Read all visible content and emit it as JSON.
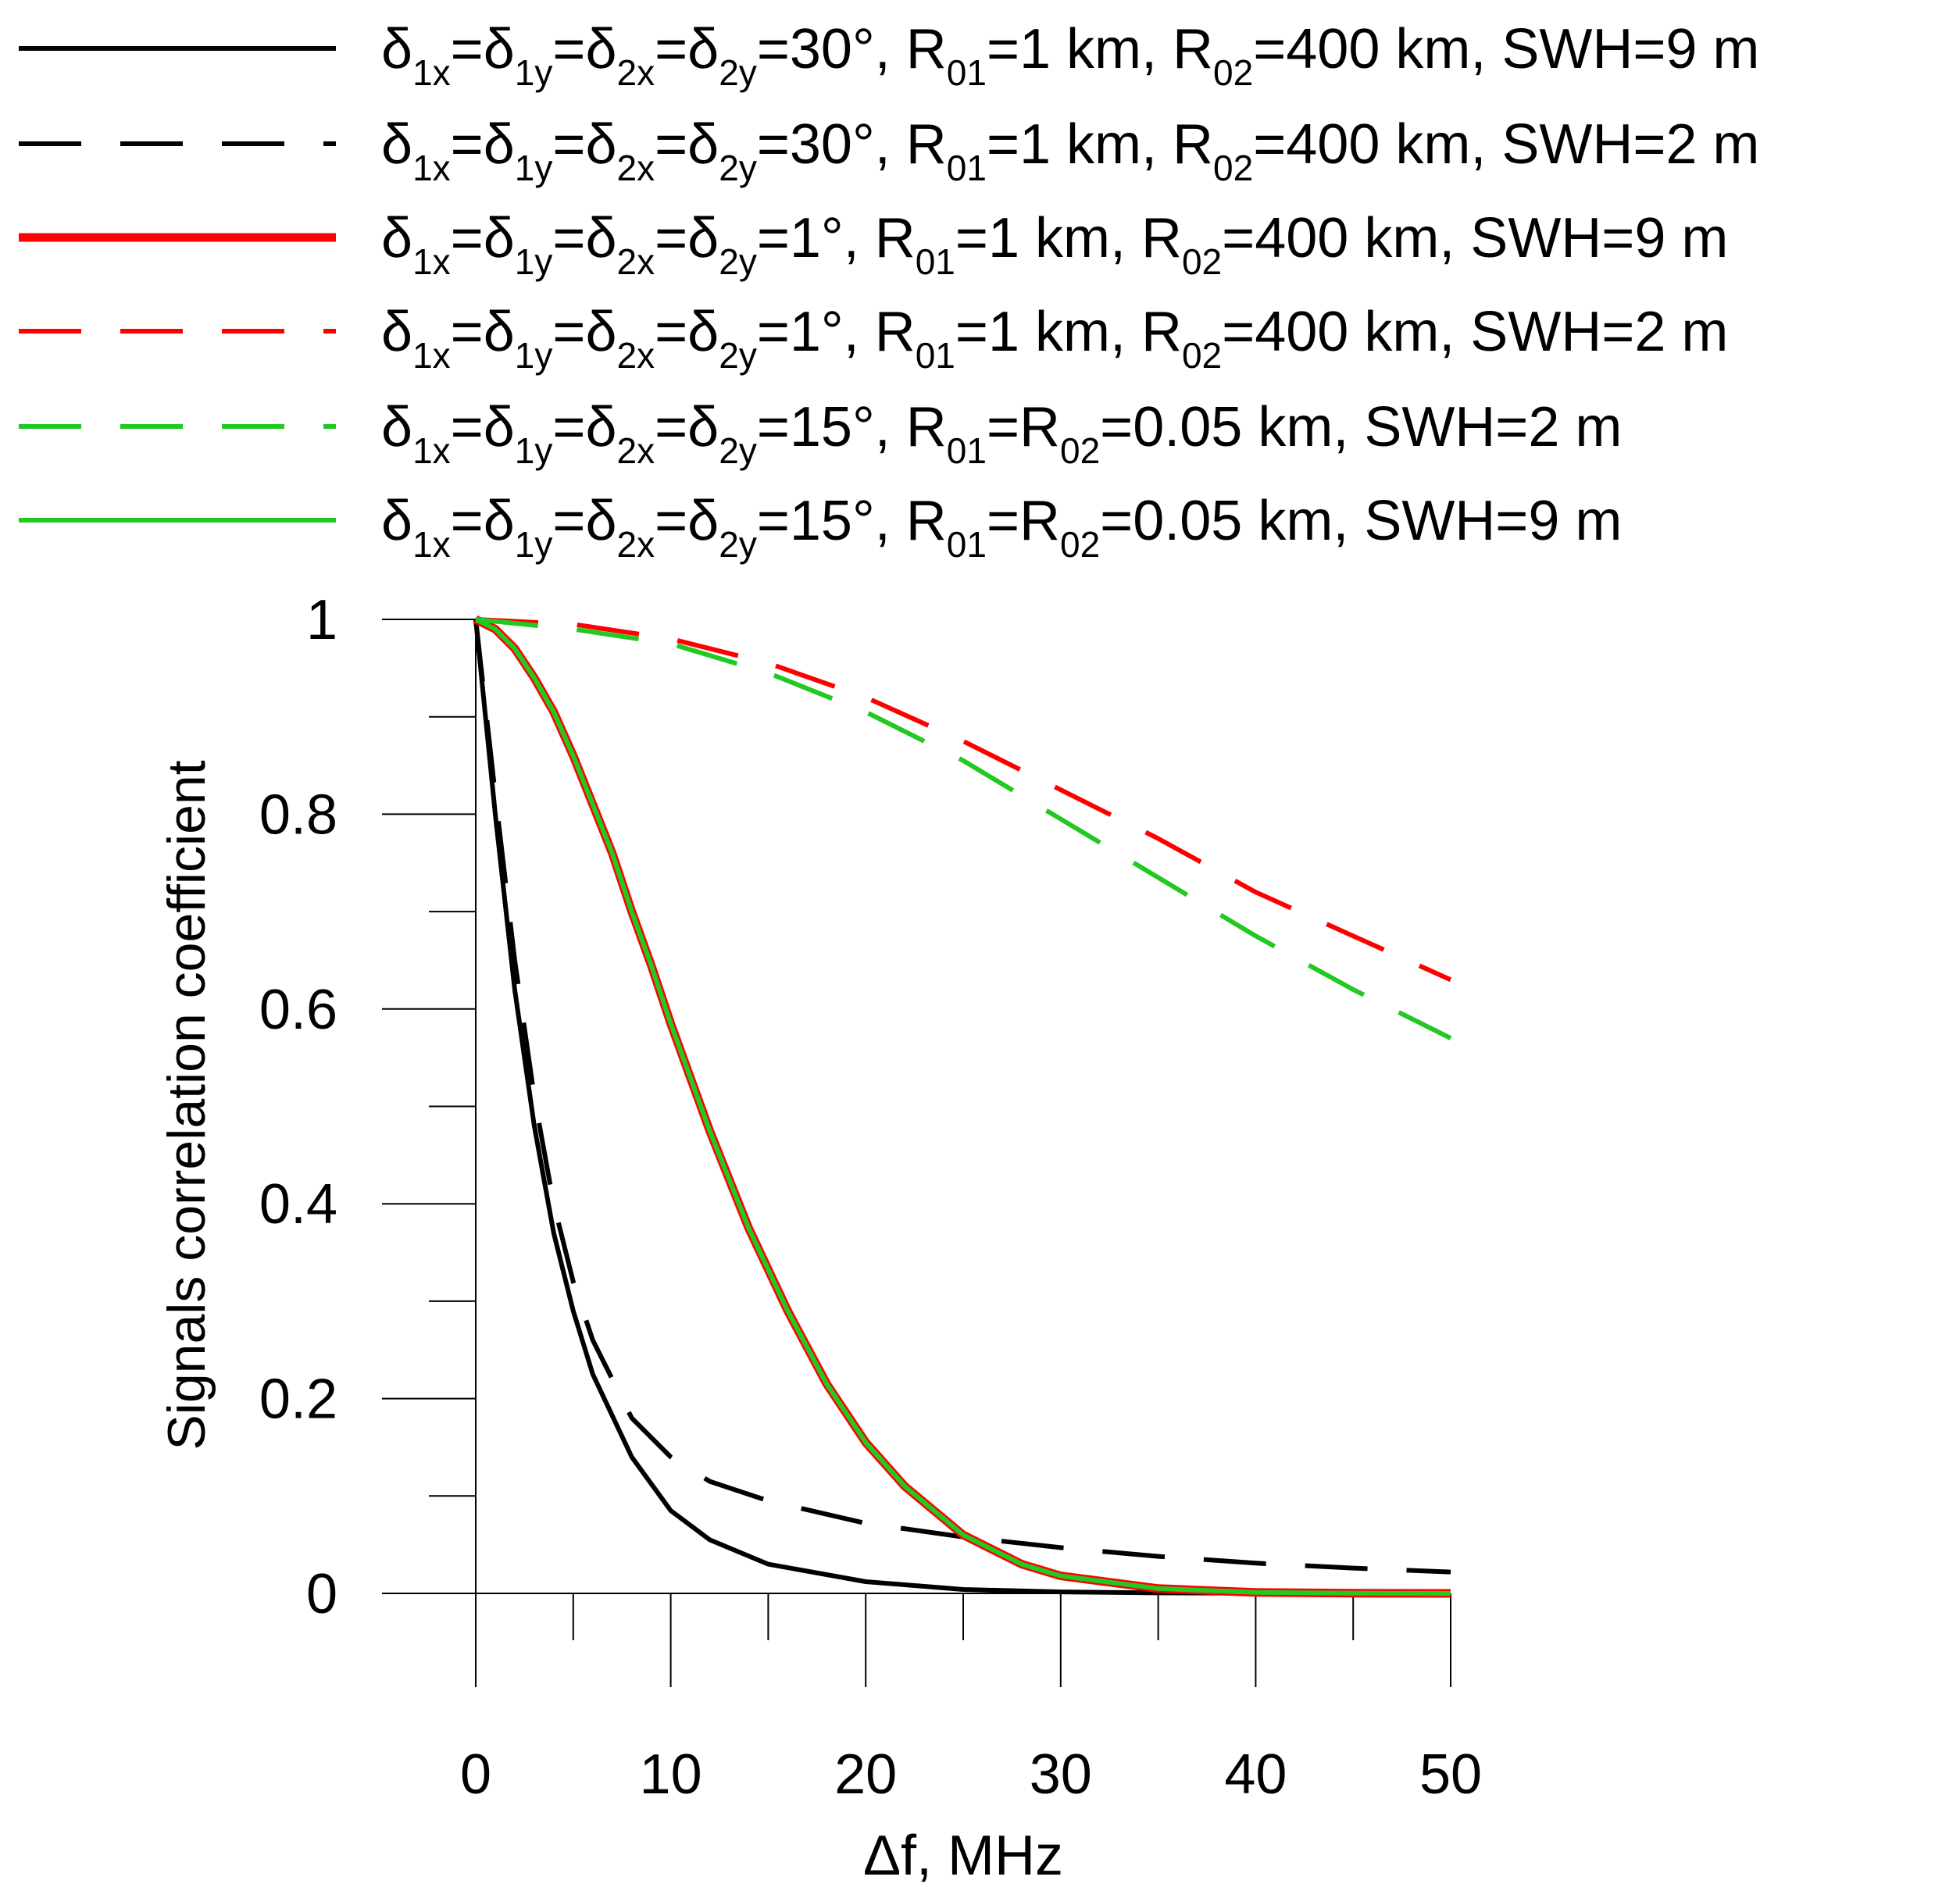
{
  "chart_data": {
    "type": "line",
    "title": "",
    "xlabel": "Δf, MHz",
    "ylabel": "Signals correlation coefficient",
    "xlim": [
      0,
      50
    ],
    "ylim": [
      0,
      1
    ],
    "x_ticks": [
      0,
      10,
      20,
      30,
      40,
      50
    ],
    "x_tick_labels": [
      "0",
      "10",
      "20",
      "30",
      "40",
      "50"
    ],
    "x_minor_step": 5,
    "y_ticks": [
      0,
      0.2,
      0.4,
      0.6,
      0.8,
      1
    ],
    "y_tick_labels": [
      "0",
      "0.2",
      "0.4",
      "0.6",
      "0.8",
      "1"
    ],
    "y_minor_step": 0.1,
    "grid": false,
    "legend_position": "top",
    "series": [
      {
        "name": "δ1x=δ1y=δ2x=δ2y=30°, R01=1 km, R02=400 km, SWH=9 m",
        "legend": {
          "parts": [
            {
              "t": "δ"
            },
            {
              "t": "1x",
              "sub": true
            },
            {
              "t": "=δ"
            },
            {
              "t": "1y",
              "sub": true
            },
            {
              "t": "=δ"
            },
            {
              "t": "2x",
              "sub": true
            },
            {
              "t": "=δ"
            },
            {
              "t": "2y",
              "sub": true
            },
            {
              "t": "=30°, R"
            },
            {
              "t": "01",
              "sub": true
            },
            {
              "t": "=1 km, R"
            },
            {
              "t": "02",
              "sub": true
            },
            {
              "t": "=400 km, SWH=9 m"
            }
          ]
        },
        "color": "#000000",
        "style": "solid",
        "width": 6,
        "x": [
          0,
          1,
          2,
          3,
          4,
          5,
          6,
          8,
          10,
          12,
          15,
          20,
          25,
          30,
          35,
          40,
          45,
          50
        ],
        "y": [
          1,
          0.8,
          0.62,
          0.48,
          0.37,
          0.29,
          0.225,
          0.14,
          0.085,
          0.055,
          0.03,
          0.012,
          0.004,
          0.0015,
          0.0005,
          0.0002,
          0.0001,
          0
        ]
      },
      {
        "name": "δ1x=δ1y=δ2x=δ2y=30°, R01=1 km, R02=400 km, SWH=2 m",
        "legend": {
          "parts": [
            {
              "t": "δ"
            },
            {
              "t": "1x",
              "sub": true
            },
            {
              "t": "=δ"
            },
            {
              "t": "1y",
              "sub": true
            },
            {
              "t": "=δ"
            },
            {
              "t": "2x",
              "sub": true
            },
            {
              "t": "=δ"
            },
            {
              "t": "2y",
              "sub": true
            },
            {
              "t": "=30°, R"
            },
            {
              "t": "01",
              "sub": true
            },
            {
              "t": "=1 km, R"
            },
            {
              "t": "02",
              "sub": true
            },
            {
              "t": "=400 km, SWH=2 m"
            }
          ]
        },
        "color": "#000000",
        "style": "dashed",
        "width": 6,
        "x": [
          0,
          1,
          2,
          3,
          4,
          5,
          6,
          8,
          10,
          12,
          15,
          20,
          25,
          30,
          35,
          40,
          45,
          50
        ],
        "y": [
          1,
          0.82,
          0.65,
          0.51,
          0.4,
          0.32,
          0.26,
          0.18,
          0.14,
          0.115,
          0.095,
          0.072,
          0.058,
          0.047,
          0.038,
          0.031,
          0.026,
          0.022
        ]
      },
      {
        "name": "δ1x=δ1y=δ2x=δ2y=1°, R01=1 km, R02=400 km, SWH=9 m",
        "legend": {
          "parts": [
            {
              "t": "δ"
            },
            {
              "t": "1x",
              "sub": true
            },
            {
              "t": "=δ"
            },
            {
              "t": "1y",
              "sub": true
            },
            {
              "t": "=δ"
            },
            {
              "t": "2x",
              "sub": true
            },
            {
              "t": "=δ"
            },
            {
              "t": "2y",
              "sub": true
            },
            {
              "t": "=1°, R"
            },
            {
              "t": "01",
              "sub": true
            },
            {
              "t": "=1 km, R"
            },
            {
              "t": "02",
              "sub": true
            },
            {
              "t": "=400 km, SWH=9 m"
            }
          ]
        },
        "color": "#ff0000",
        "style": "solid",
        "width": 11,
        "x": [
          0,
          1,
          2,
          3,
          4,
          5,
          6,
          7,
          8,
          9,
          10,
          12,
          14,
          16,
          18,
          20,
          22,
          25,
          28,
          30,
          35,
          40,
          45,
          50
        ],
        "y": [
          1,
          0.99,
          0.97,
          0.94,
          0.905,
          0.86,
          0.81,
          0.76,
          0.7,
          0.645,
          0.585,
          0.475,
          0.375,
          0.29,
          0.215,
          0.155,
          0.11,
          0.06,
          0.03,
          0.018,
          0.005,
          0.001,
          0.0002,
          0
        ]
      },
      {
        "name": "δ1x=δ1y=δ2x=δ2y=1°, R01=1 km, R02=400 km, SWH=2 m",
        "legend": {
          "parts": [
            {
              "t": "δ"
            },
            {
              "t": "1x",
              "sub": true
            },
            {
              "t": "=δ"
            },
            {
              "t": "1y",
              "sub": true
            },
            {
              "t": "=δ"
            },
            {
              "t": "2x",
              "sub": true
            },
            {
              "t": "=δ"
            },
            {
              "t": "2y",
              "sub": true
            },
            {
              "t": "=1°, R"
            },
            {
              "t": "01",
              "sub": true
            },
            {
              "t": "=1 km, R"
            },
            {
              "t": "02",
              "sub": true
            },
            {
              "t": "=400 km, SWH=2 m"
            }
          ]
        },
        "color": "#ff0000",
        "style": "dashed",
        "width": 6,
        "x": [
          0,
          5,
          10,
          15,
          20,
          25,
          30,
          35,
          40,
          45,
          50
        ],
        "y": [
          1,
          0.995,
          0.98,
          0.955,
          0.92,
          0.875,
          0.825,
          0.775,
          0.72,
          0.675,
          0.63
        ]
      },
      {
        "name": "δ1x=δ1y=δ2x=δ2y=15°, R01=R02=0.05 km, SWH=2 m",
        "legend": {
          "parts": [
            {
              "t": "δ"
            },
            {
              "t": "1x",
              "sub": true
            },
            {
              "t": "=δ"
            },
            {
              "t": "1y",
              "sub": true
            },
            {
              "t": "=δ"
            },
            {
              "t": "2x",
              "sub": true
            },
            {
              "t": "=δ"
            },
            {
              "t": "2y",
              "sub": true
            },
            {
              "t": "=15°, R"
            },
            {
              "t": "01",
              "sub": true
            },
            {
              "t": "=R"
            },
            {
              "t": "02",
              "sub": true
            },
            {
              "t": "=0.05 km, SWH=2 m"
            }
          ]
        },
        "color": "#22c922",
        "style": "dashed",
        "width": 6,
        "x": [
          0,
          5,
          10,
          15,
          20,
          25,
          30,
          35,
          40,
          45,
          50
        ],
        "y": [
          1,
          0.99,
          0.975,
          0.945,
          0.905,
          0.855,
          0.795,
          0.735,
          0.675,
          0.62,
          0.57
        ]
      },
      {
        "name": "δ1x=δ1y=δ2x=δ2y=15°, R01=R02=0.05 km, SWH=9 m",
        "legend": {
          "parts": [
            {
              "t": "δ"
            },
            {
              "t": "1x",
              "sub": true
            },
            {
              "t": "=δ"
            },
            {
              "t": "1y",
              "sub": true
            },
            {
              "t": "=δ"
            },
            {
              "t": "2x",
              "sub": true
            },
            {
              "t": "=δ"
            },
            {
              "t": "2y",
              "sub": true
            },
            {
              "t": "=15°, R"
            },
            {
              "t": "01",
              "sub": true
            },
            {
              "t": "=R"
            },
            {
              "t": "02",
              "sub": true
            },
            {
              "t": "=0.05 km, SWH=9 m"
            }
          ]
        },
        "color": "#22c922",
        "style": "solid",
        "width": 6,
        "x": [
          0,
          1,
          2,
          3,
          4,
          5,
          6,
          7,
          8,
          9,
          10,
          12,
          14,
          16,
          18,
          20,
          22,
          25,
          28,
          30,
          35,
          40,
          45,
          50
        ],
        "y": [
          1,
          0.99,
          0.97,
          0.94,
          0.905,
          0.86,
          0.81,
          0.76,
          0.7,
          0.645,
          0.585,
          0.475,
          0.375,
          0.29,
          0.215,
          0.155,
          0.11,
          0.06,
          0.03,
          0.018,
          0.005,
          0.001,
          0.0002,
          0
        ]
      }
    ]
  }
}
